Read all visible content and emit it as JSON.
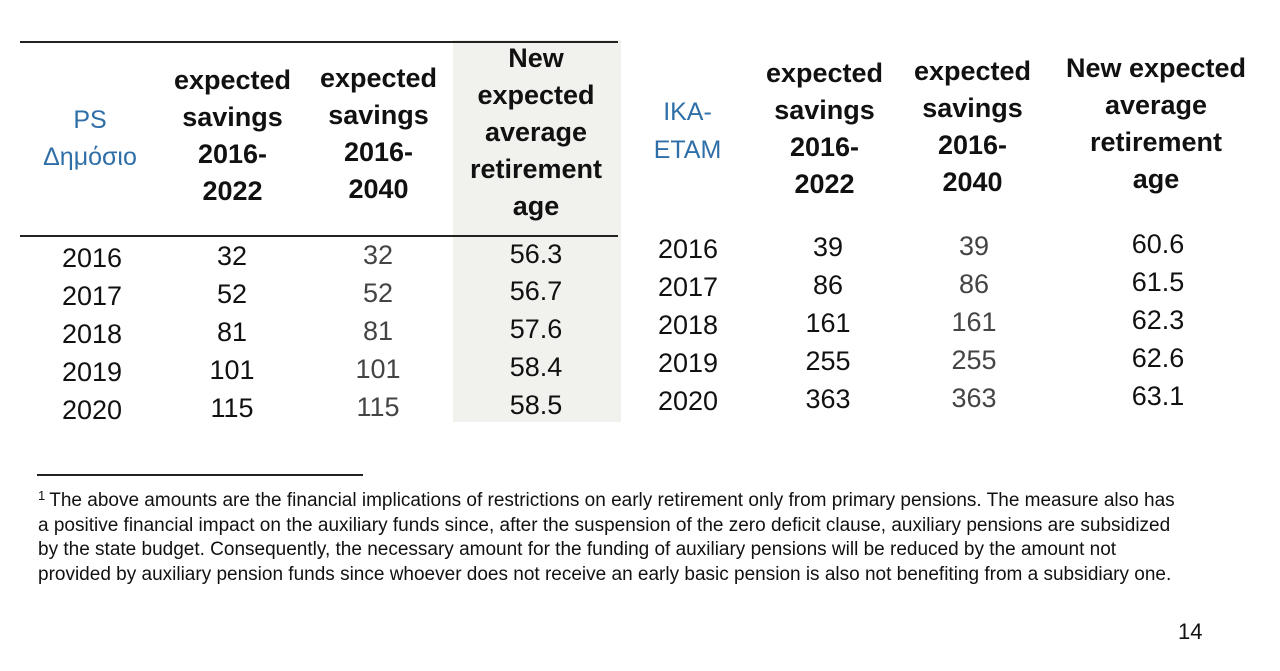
{
  "left_table": {
    "col1_header": [
      "PS",
      "Δημόσιο"
    ],
    "col2_header": [
      "expected",
      "savings",
      "2016-",
      "2022"
    ],
    "col3_header": [
      "expected",
      "savings",
      "2016-",
      "2040"
    ],
    "col4_header": [
      "New",
      "expected",
      "average",
      "retirement",
      "age"
    ],
    "rows": [
      [
        "2016",
        "32",
        "32",
        "56.3"
      ],
      [
        "2017",
        "52",
        "52",
        "56.7"
      ],
      [
        "2018",
        "81",
        "81",
        "57.6"
      ],
      [
        "2019",
        "101",
        "101",
        "58.4"
      ],
      [
        "2020",
        "115",
        "115",
        "58.5"
      ]
    ]
  },
  "right_table": {
    "col1_header": [
      "IKA-",
      "ETAM"
    ],
    "col2_header": [
      "expected",
      "savings",
      "2016-",
      "2022"
    ],
    "col3_header": [
      "expected",
      "savings",
      "2016-",
      "2040"
    ],
    "col4_header": [
      "New expected",
      "average",
      "retirement",
      "age"
    ],
    "rows": [
      [
        "2016",
        "39",
        "39",
        "60.6"
      ],
      [
        "2017",
        "86",
        "86",
        "61.5"
      ],
      [
        "2018",
        "161",
        "161",
        "62.3"
      ],
      [
        "2019",
        "255",
        "255",
        "62.6"
      ],
      [
        "2020",
        "363",
        "363",
        "63.1"
      ]
    ]
  },
  "footnote": {
    "marker": "1",
    "text": "The above amounts are the financial implications of restrictions on early retirement only from primary pensions. The measure also has a positive financial impact on the auxiliary funds since, after the suspension of the zero deficit clause, auxiliary pensions are subsidized by the state budget. Consequently, the necessary amount for the funding of auxiliary pensions will be reduced by the amount not provided by auxiliary pension funds since whoever does not receive an early basic pension is also not benefiting from a subsidiary one."
  },
  "page_number": "14",
  "colors": {
    "header_blue": "#2f6fa8",
    "shade": "#f1f1ee"
  }
}
